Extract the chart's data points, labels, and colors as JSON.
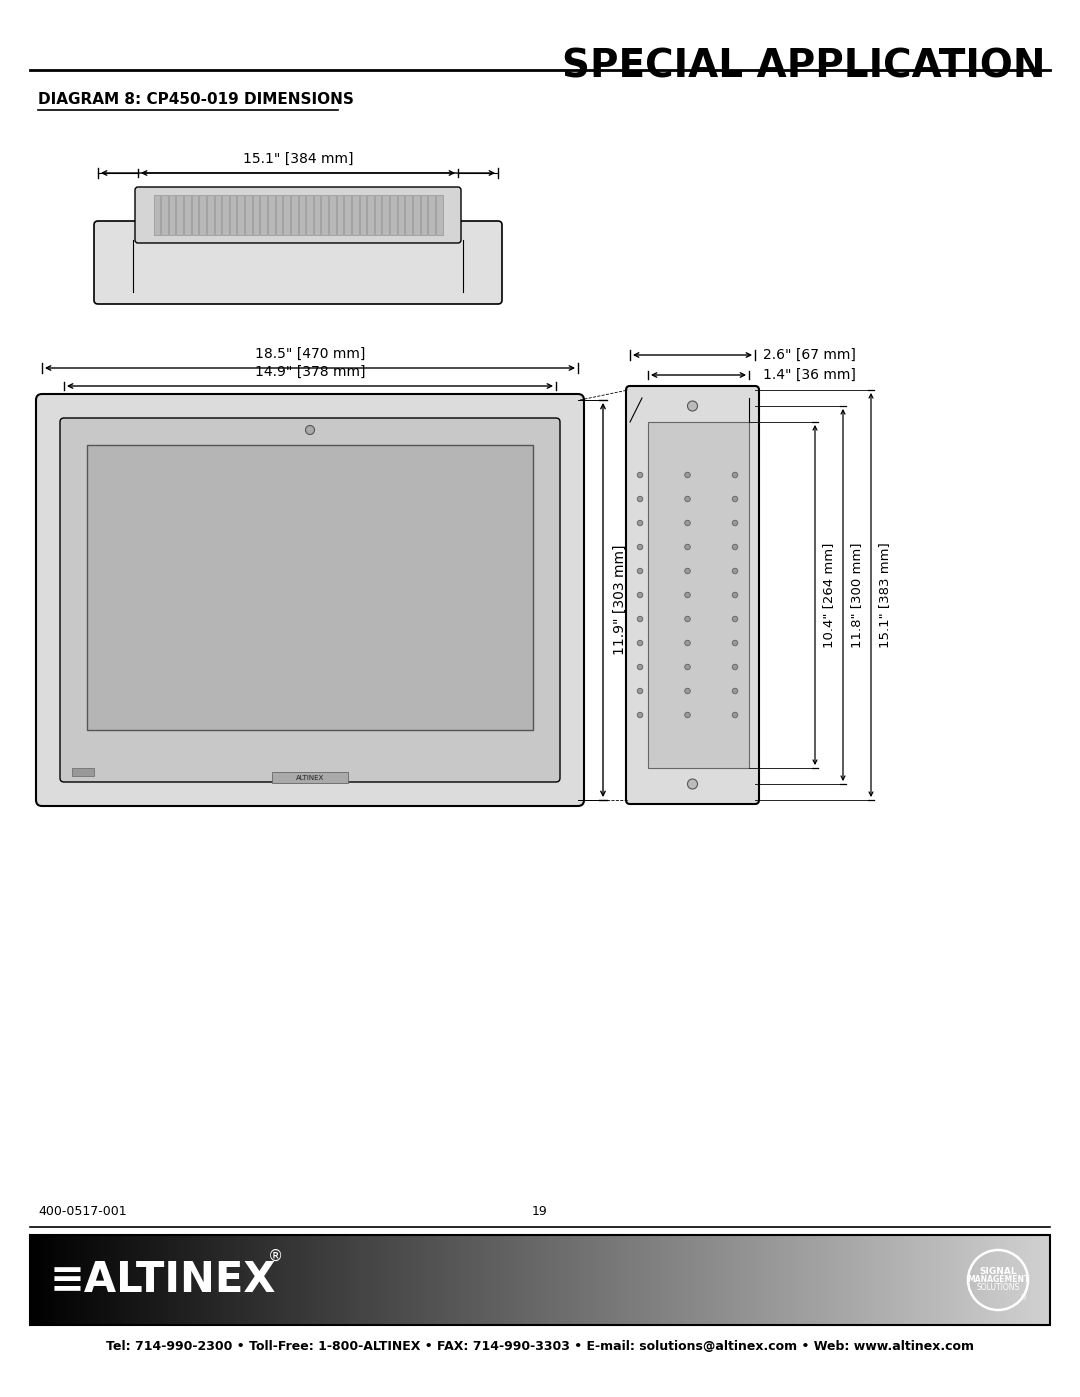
{
  "title": "SPECIAL APPLICATION",
  "subtitle": "DIAGRAM 8: CP450-019 DIMENSIONS",
  "footer_left": "400-0517-001",
  "footer_center": "19",
  "footer_contact": "Tel: 714-990-2300 • Toll-Free: 1-800-ALTINEX • FAX: 714-990-3303 • E-mail: solutions@altinex.com • Web: www.altinex.com",
  "dim_top_width": "15.1\" [384 mm]",
  "dim_front_width_outer": "18.5\" [470 mm]",
  "dim_front_width_inner": "14.9\" [378 mm]",
  "dim_front_height": "11.9\" [303 mm]",
  "dim_side_top": "2.6\" [67 mm]",
  "dim_side_mid": "1.4\" [36 mm]",
  "dim_side_h1": "10.4\" [264 mm]",
  "dim_side_h2": "11.8\" [300 mm]",
  "dim_side_h3": "15.1\" [383 mm]",
  "bg_color": "#ffffff",
  "line_color": "#000000",
  "gray_light": "#e0e0e0",
  "gray_mid": "#c0c0c0",
  "gray_dark": "#888888"
}
